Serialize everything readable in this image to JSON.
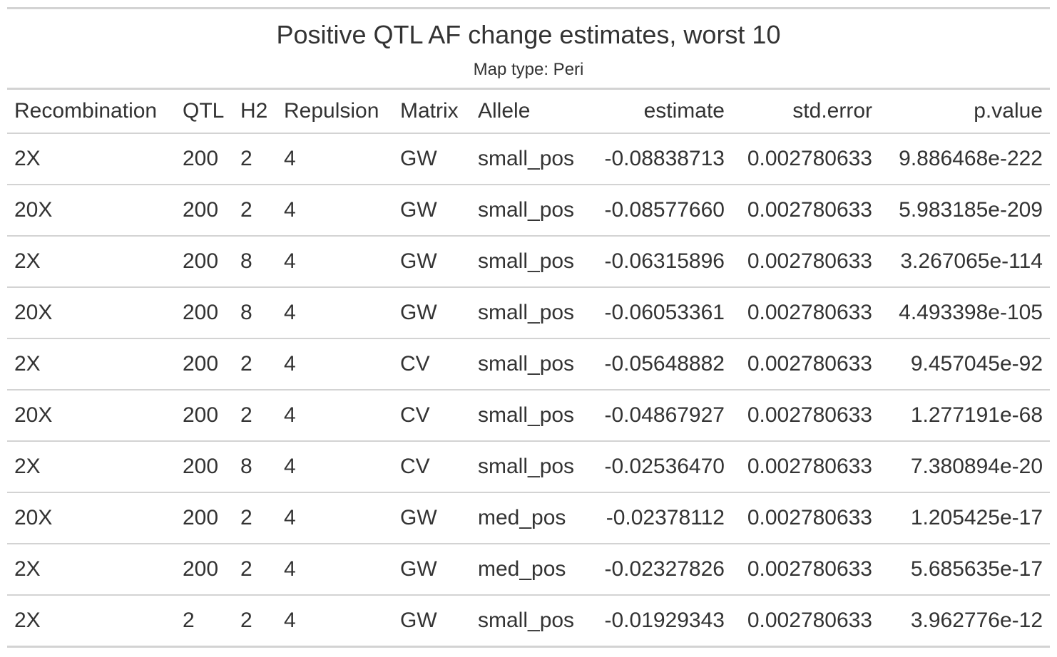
{
  "title": "Positive QTL AF change estimates, worst 10",
  "subtitle": "Map type: Peri",
  "columns": [
    "Recombination",
    "QTL",
    "H2",
    "Repulsion",
    "Matrix",
    "Allele",
    "estimate",
    "std.error",
    "p.value"
  ],
  "rows": [
    [
      "2X",
      "200",
      "2",
      "4",
      "GW",
      "small_pos",
      "-0.08838713",
      "0.002780633",
      "9.886468e-222"
    ],
    [
      "20X",
      "200",
      "2",
      "4",
      "GW",
      "small_pos",
      "-0.08577660",
      "0.002780633",
      "5.983185e-209"
    ],
    [
      "2X",
      "200",
      "8",
      "4",
      "GW",
      "small_pos",
      "-0.06315896",
      "0.002780633",
      "3.267065e-114"
    ],
    [
      "20X",
      "200",
      "8",
      "4",
      "GW",
      "small_pos",
      "-0.06053361",
      "0.002780633",
      "4.493398e-105"
    ],
    [
      "2X",
      "200",
      "2",
      "4",
      "CV",
      "small_pos",
      "-0.05648882",
      "0.002780633",
      "9.457045e-92"
    ],
    [
      "20X",
      "200",
      "2",
      "4",
      "CV",
      "small_pos",
      "-0.04867927",
      "0.002780633",
      "1.277191e-68"
    ],
    [
      "2X",
      "200",
      "8",
      "4",
      "CV",
      "small_pos",
      "-0.02536470",
      "0.002780633",
      "7.380894e-20"
    ],
    [
      "20X",
      "200",
      "2",
      "4",
      "GW",
      "med_pos",
      "-0.02378112",
      "0.002780633",
      "1.205425e-17"
    ],
    [
      "2X",
      "200",
      "2",
      "4",
      "GW",
      "med_pos",
      "-0.02327826",
      "0.002780633",
      "5.685635e-17"
    ],
    [
      "2X",
      "2",
      "2",
      "4",
      "GW",
      "small_pos",
      "-0.01929343",
      "0.002780633",
      "3.962776e-12"
    ]
  ]
}
